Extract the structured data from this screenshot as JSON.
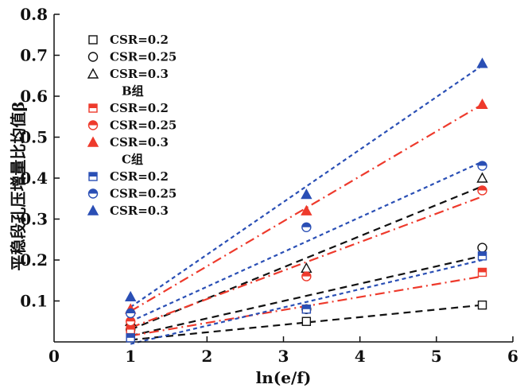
{
  "chart_data": {
    "type": "scatter",
    "title": "",
    "xlabel": "ln(e/f)",
    "ylabel": "平稳段孔压增量比均值β",
    "xlim": [
      0,
      6
    ],
    "ylim": [
      0,
      0.8
    ],
    "x_ticks": [
      "0",
      "1",
      "2",
      "3",
      "4",
      "5",
      "6"
    ],
    "y_ticks": [
      "0.1",
      "0.2",
      "0.3",
      "0.4",
      "0.5",
      "0.6",
      "0.7",
      "0.8"
    ],
    "x": [
      1.0,
      3.3,
      5.6
    ],
    "legend_groups": [
      {
        "label": "",
        "color": "#111111"
      },
      {
        "label": "B组",
        "color": "#ee3a2c"
      },
      {
        "label": "C组",
        "color": "#2a4fb5"
      }
    ],
    "series": [
      {
        "name": "CSR=0.2",
        "group": 0,
        "marker": "square-open",
        "values": [
          0.02,
          0.05,
          0.09
        ],
        "fit": [
          [
            1.0,
            0.005
          ],
          [
            5.6,
            0.09
          ]
        ]
      },
      {
        "name": "CSR=0.25",
        "group": 0,
        "marker": "circle-open",
        "values": [
          0.03,
          0.08,
          0.23
        ],
        "fit": [
          [
            1.0,
            0.015
          ],
          [
            5.6,
            0.21
          ]
        ]
      },
      {
        "name": "CSR=0.3",
        "group": 0,
        "marker": "triangle-open",
        "values": [
          0.05,
          0.18,
          0.4
        ],
        "fit": [
          [
            1.0,
            0.03
          ],
          [
            5.6,
            0.38
          ]
        ]
      },
      {
        "name": "CSR=0.2",
        "group": 1,
        "marker": "square-half",
        "values": [
          0.03,
          0.08,
          0.17
        ],
        "fit": [
          [
            1.0,
            0.015
          ],
          [
            5.6,
            0.16
          ]
        ]
      },
      {
        "name": "CSR=0.25",
        "group": 1,
        "marker": "circle-half",
        "values": [
          0.05,
          0.16,
          0.37
        ],
        "fit": [
          [
            1.0,
            0.035
          ],
          [
            5.6,
            0.355
          ]
        ]
      },
      {
        "name": "CSR=0.3",
        "group": 1,
        "marker": "triangle-half",
        "values": [
          0.08,
          0.32,
          0.58
        ],
        "fit": [
          [
            1.0,
            0.075
          ],
          [
            5.6,
            0.58
          ]
        ]
      },
      {
        "name": "CSR=0.2",
        "group": 2,
        "marker": "square-half",
        "values": [
          0.01,
          0.08,
          0.21
        ],
        "fit": [
          [
            1.0,
            -0.005
          ],
          [
            5.6,
            0.2
          ]
        ]
      },
      {
        "name": "CSR=0.25",
        "group": 2,
        "marker": "circle-half",
        "values": [
          0.07,
          0.28,
          0.43
        ],
        "fit": [
          [
            1.0,
            0.05
          ],
          [
            5.6,
            0.44
          ]
        ]
      },
      {
        "name": "CSR=0.3",
        "group": 2,
        "marker": "triangle-half",
        "values": [
          0.11,
          0.36,
          0.68
        ],
        "fit": [
          [
            1.0,
            0.085
          ],
          [
            5.6,
            0.675
          ]
        ]
      }
    ]
  }
}
